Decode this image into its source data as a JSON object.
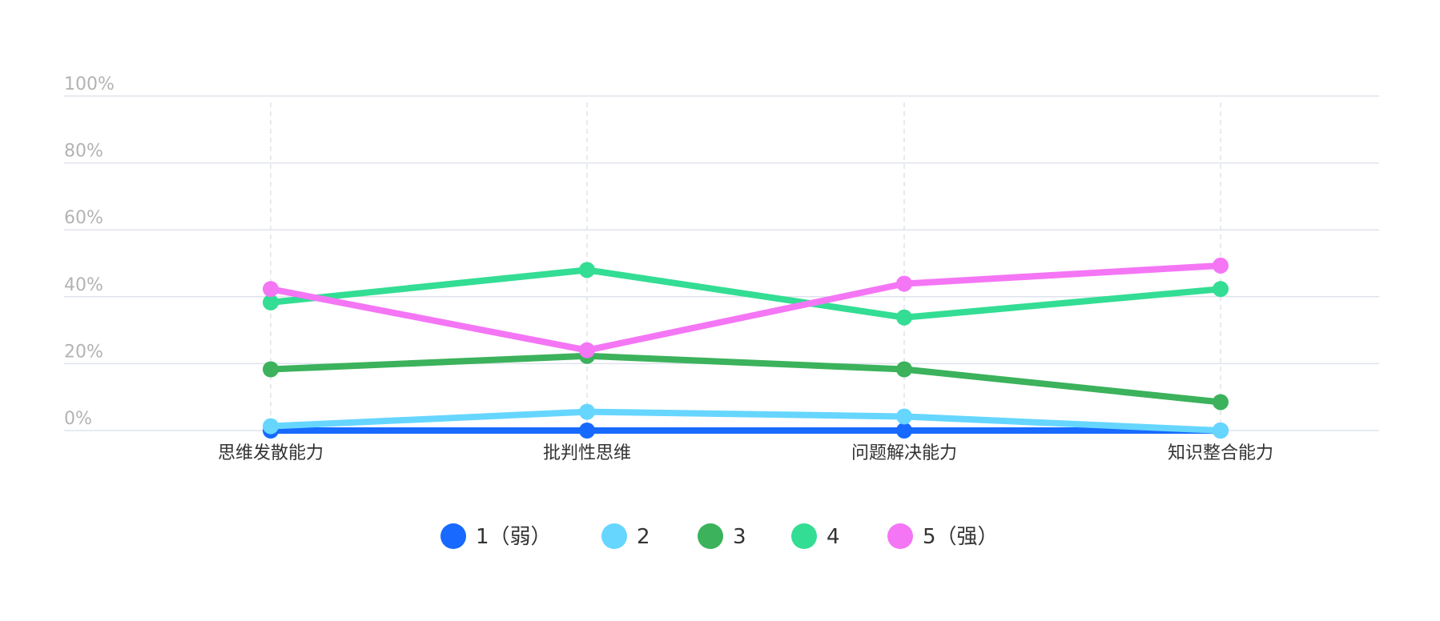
{
  "chart_data": {
    "type": "line",
    "title": "",
    "xlabel": "",
    "ylabel": "",
    "categories": [
      "思维发散能力",
      "批判性思维",
      "问题解决能力",
      "知识整合能力"
    ],
    "ylim": [
      0,
      100
    ],
    "yticks": [
      0,
      20,
      40,
      60,
      80,
      100
    ],
    "ytick_labels": [
      "0%",
      "20%",
      "40%",
      "60%",
      "80%",
      "100%"
    ],
    "grid": true,
    "legend_position": "bottom",
    "series": [
      {
        "name": "1（弱）",
        "color": "#1769ff",
        "values": [
          0,
          0,
          0,
          0
        ]
      },
      {
        "name": "2",
        "color": "#66d6ff",
        "values": [
          1.3,
          5.6,
          4.2,
          0
        ]
      },
      {
        "name": "3",
        "color": "#3bb25b",
        "values": [
          18.3,
          22.3,
          18.3,
          8.5
        ]
      },
      {
        "name": "4",
        "color": "#33dd93",
        "values": [
          38.3,
          48,
          33.8,
          42.3
        ]
      },
      {
        "name": "5（强）",
        "color": "#f476f5",
        "values": [
          42.3,
          24,
          43.9,
          49.3
        ]
      }
    ]
  }
}
